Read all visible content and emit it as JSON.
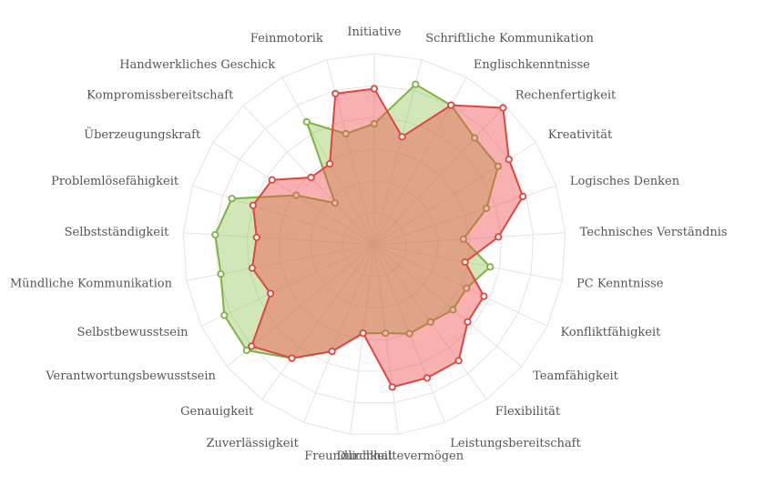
{
  "chart_data": {
    "type": "radar",
    "axes": [
      "Initiative",
      "Schriftliche Kommunikation",
      "Englischkenntnisse",
      "Rechenfertigkeit",
      "Kreativität",
      "Logisches Denken",
      "Technisches Verständnis",
      "PC Kenntnisse",
      "Konfliktfähigkeit",
      "Teamfähigkeit",
      "Flexibilität",
      "Leistungsbereitschaft",
      "Durchhaltevermögen",
      "Freundlichkeit",
      "Zuverlässigkeit",
      "Genauigkeit",
      "Verantwortungsbewusstsein",
      "Selbstbewusstsein",
      "Mündliche Kommunikation",
      "Selbstständigkeit",
      "Problemlösefähigkeit",
      "Überzeugungskraft",
      "Kompromissbereitschaft",
      "Handwerkliches Geschick",
      "Feinmotorik"
    ],
    "rmax": 6,
    "grid_levels": 6,
    "series": [
      {
        "color": "#7cb342",
        "fill": "rgba(141,196,75,0.4)",
        "values": [
          3.8,
          5.2,
          5.0,
          4.6,
          4.6,
          3.7,
          2.8,
          3.7,
          3.2,
          3.2,
          3.0,
          3.0,
          2.8,
          2.8,
          3.6,
          4.4,
          5.2,
          5.2,
          4.9,
          5.0,
          4.7,
          2.9,
          1.8,
          4.4,
          3.6
        ]
      },
      {
        "color": "#e0453e",
        "fill": "rgba(240,80,80,0.45)",
        "values": [
          4.9,
          3.5,
          5.0,
          5.9,
          5.0,
          4.9,
          3.9,
          2.9,
          3.8,
          3.8,
          4.5,
          4.5,
          4.5,
          2.8,
          3.6,
          4.4,
          5.0,
          3.6,
          3.9,
          3.7,
          4.0,
          3.8,
          2.9,
          2.9,
          4.9
        ]
      }
    ]
  }
}
